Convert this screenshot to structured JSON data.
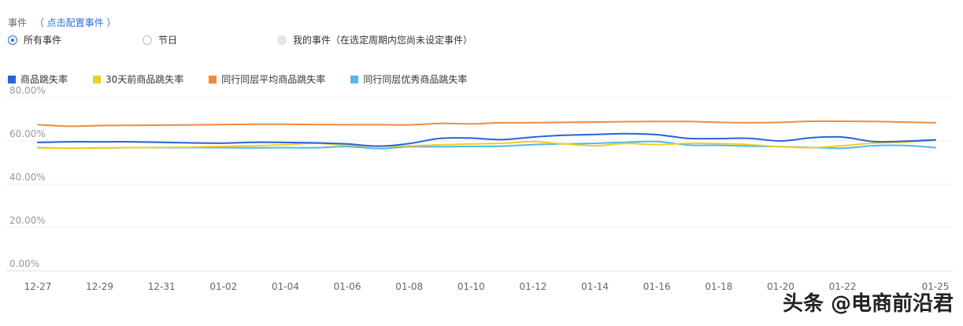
{
  "events": {
    "title": "事件",
    "config_link": "（ 点击配置事件 ）",
    "options": [
      {
        "label": "所有事件",
        "state": "checked"
      },
      {
        "label": "节日",
        "state": "unchecked"
      },
      {
        "label": "我的事件（在选定周期内您尚未设定事件）",
        "state": "disabled"
      }
    ]
  },
  "watermark": "头条 @电商前沿君",
  "chart_data": {
    "type": "line",
    "x": [
      "12-27",
      "12-28",
      "12-29",
      "12-30",
      "12-31",
      "01-01",
      "01-02",
      "01-03",
      "01-04",
      "01-05",
      "01-06",
      "01-07",
      "01-08",
      "01-09",
      "01-10",
      "01-11",
      "01-12",
      "01-13",
      "01-14",
      "01-15",
      "01-16",
      "01-17",
      "01-18",
      "01-19",
      "01-20",
      "01-21",
      "01-22",
      "01-23",
      "01-24",
      "01-25"
    ],
    "x_tick_labels": [
      "12-27",
      "12-29",
      "12-31",
      "01-02",
      "01-04",
      "01-06",
      "01-08",
      "01-10",
      "01-12",
      "01-14",
      "01-16",
      "01-18",
      "01-20",
      "01-22",
      "01-25"
    ],
    "ylim": [
      0,
      80
    ],
    "y_ticks": [
      "0.00%",
      "20.00%",
      "40.00%",
      "60.00%",
      "80.00%"
    ],
    "y_tick_values": [
      0,
      20,
      40,
      60,
      80
    ],
    "grid": true,
    "legend_position": "top-left",
    "series": [
      {
        "name": "商品跳失率",
        "color": "#2a62d9",
        "values": [
          59.3,
          59.6,
          59.6,
          59.6,
          59.4,
          59.1,
          59.0,
          59.4,
          59.3,
          59.1,
          58.6,
          57.6,
          58.8,
          61.2,
          61.3,
          60.6,
          61.8,
          62.6,
          63.0,
          63.4,
          62.9,
          61.2,
          61.1,
          61.2,
          60.0,
          61.5,
          61.8,
          59.7,
          59.9,
          60.5
        ]
      },
      {
        "name": "30天前商品跳失率",
        "color": "#f2cf1f",
        "values": [
          56.8,
          56.7,
          56.8,
          56.9,
          57.0,
          57.2,
          57.5,
          57.8,
          58.3,
          58.9,
          58.0,
          57.6,
          57.7,
          58.2,
          58.6,
          58.9,
          59.7,
          58.6,
          57.8,
          58.8,
          58.3,
          58.9,
          58.8,
          58.3,
          57.3,
          56.9,
          57.8,
          59.0,
          59.5,
          60.3
        ]
      },
      {
        "name": "同行同层平均商品跳失率",
        "color": "#f08a3c",
        "values": [
          67.5,
          66.8,
          67.1,
          67.2,
          67.3,
          67.4,
          67.6,
          67.7,
          67.7,
          67.6,
          67.5,
          67.5,
          67.4,
          68.1,
          67.9,
          68.4,
          68.4,
          68.6,
          68.7,
          68.9,
          69.0,
          69.0,
          68.6,
          68.4,
          68.6,
          69.1,
          69.1,
          69.0,
          68.7,
          68.4
        ]
      },
      {
        "name": "同行同层优秀商品跳失率",
        "color": "#52b7ee",
        "values": [
          57.0,
          56.6,
          56.8,
          56.9,
          56.9,
          56.9,
          56.9,
          56.8,
          56.9,
          56.9,
          57.4,
          56.5,
          57.3,
          57.3,
          57.5,
          57.6,
          58.3,
          58.6,
          58.9,
          59.4,
          59.7,
          58.1,
          58.0,
          57.6,
          57.4,
          57.0,
          56.6,
          57.8,
          57.9,
          56.9
        ]
      }
    ]
  }
}
